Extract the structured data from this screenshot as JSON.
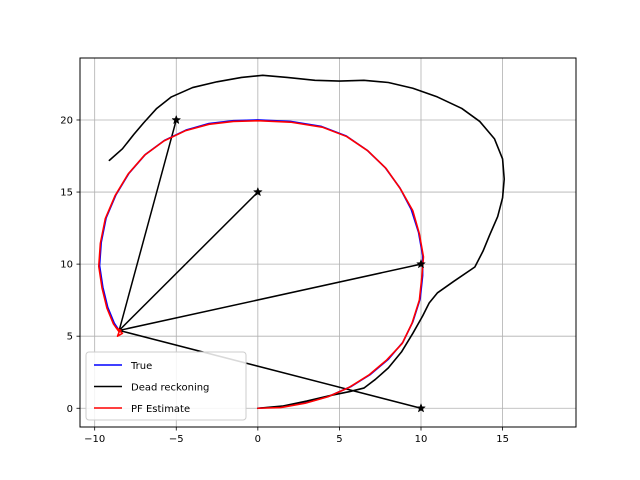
{
  "chart_data": {
    "type": "line",
    "title": "",
    "xlabel": "",
    "ylabel": "",
    "xlim": [
      -10.9,
      19.5
    ],
    "ylim": [
      -1.3,
      24.3
    ],
    "xticks": [
      -10,
      -5,
      0,
      5,
      10,
      15
    ],
    "yticks": [
      0,
      5,
      10,
      15,
      20
    ],
    "grid": true,
    "legend_position": "lower-left",
    "legend": [
      "True",
      "Dead reckoning",
      "PF Estimate"
    ],
    "series": [
      {
        "name": "True",
        "color": "#0000ff",
        "points": [
          [
            0,
            0
          ],
          [
            1.5,
            0.1
          ],
          [
            3.0,
            0.4
          ],
          [
            4.4,
            0.85
          ],
          [
            5.7,
            1.5
          ],
          [
            6.9,
            2.35
          ],
          [
            8.0,
            3.4
          ],
          [
            8.9,
            4.6
          ],
          [
            9.5,
            6.0
          ],
          [
            9.95,
            7.6
          ],
          [
            10.1,
            9.2
          ],
          [
            10.1,
            10.6
          ],
          [
            9.85,
            12.2
          ],
          [
            9.4,
            13.8
          ],
          [
            8.7,
            15.3
          ],
          [
            7.8,
            16.7
          ],
          [
            6.7,
            17.9
          ],
          [
            5.4,
            18.9
          ],
          [
            3.9,
            19.55
          ],
          [
            2.0,
            19.9
          ],
          [
            0,
            20.0
          ],
          [
            -1.5,
            19.95
          ],
          [
            -3.0,
            19.75
          ],
          [
            -4.4,
            19.3
          ],
          [
            -5.7,
            18.6
          ],
          [
            -6.9,
            17.6
          ],
          [
            -7.9,
            16.3
          ],
          [
            -8.7,
            14.8
          ],
          [
            -9.3,
            13.2
          ],
          [
            -9.6,
            11.5
          ],
          [
            -9.7,
            9.9
          ],
          [
            -9.5,
            8.4
          ],
          [
            -9.2,
            7.0
          ],
          [
            -8.8,
            5.9
          ],
          [
            -8.5,
            5.4
          ]
        ]
      },
      {
        "name": "Dead reckoning",
        "color": "#000000",
        "points": [
          [
            0,
            0
          ],
          [
            1.5,
            0.15
          ],
          [
            3.0,
            0.5
          ],
          [
            4.5,
            0.9
          ],
          [
            5.6,
            1.15
          ],
          [
            6.5,
            1.4
          ],
          [
            7.2,
            2.0
          ],
          [
            8.0,
            2.8
          ],
          [
            8.8,
            3.9
          ],
          [
            9.5,
            5.2
          ],
          [
            10.1,
            6.4
          ],
          [
            10.5,
            7.3
          ],
          [
            11.0,
            8.0
          ],
          [
            12.0,
            8.8
          ],
          [
            13.3,
            9.8
          ],
          [
            13.8,
            10.9
          ],
          [
            14.2,
            12.0
          ],
          [
            14.7,
            13.3
          ],
          [
            15.0,
            14.6
          ],
          [
            15.1,
            15.9
          ],
          [
            15.0,
            17.3
          ],
          [
            14.5,
            18.7
          ],
          [
            13.6,
            19.9
          ],
          [
            12.5,
            20.8
          ],
          [
            11.0,
            21.6
          ],
          [
            9.5,
            22.2
          ],
          [
            8.0,
            22.6
          ],
          [
            6.5,
            22.75
          ],
          [
            5.0,
            22.7
          ],
          [
            3.5,
            22.75
          ],
          [
            1.8,
            22.95
          ],
          [
            0.3,
            23.1
          ],
          [
            -1.0,
            22.95
          ],
          [
            -2.5,
            22.65
          ],
          [
            -4.0,
            22.25
          ],
          [
            -5.3,
            21.6
          ],
          [
            -6.2,
            20.8
          ],
          [
            -7.0,
            19.8
          ],
          [
            -7.6,
            19.0
          ],
          [
            -8.3,
            18.0
          ],
          [
            -9.1,
            17.2
          ]
        ]
      },
      {
        "name": "PF Estimate",
        "color": "#ff0000",
        "points": [
          [
            0,
            0
          ],
          [
            1.4,
            0.05
          ],
          [
            2.9,
            0.35
          ],
          [
            4.3,
            0.8
          ],
          [
            5.6,
            1.45
          ],
          [
            6.8,
            2.3
          ],
          [
            7.9,
            3.35
          ],
          [
            8.85,
            4.5
          ],
          [
            9.45,
            5.9
          ],
          [
            9.9,
            7.5
          ],
          [
            10.05,
            9.1
          ],
          [
            10.15,
            10.5
          ],
          [
            9.9,
            12.1
          ],
          [
            9.5,
            13.7
          ],
          [
            8.75,
            15.2
          ],
          [
            7.85,
            16.65
          ],
          [
            6.75,
            17.85
          ],
          [
            5.45,
            18.85
          ],
          [
            3.95,
            19.5
          ],
          [
            2.0,
            19.85
          ],
          [
            0,
            19.95
          ],
          [
            -1.5,
            19.9
          ],
          [
            -3.0,
            19.7
          ],
          [
            -4.45,
            19.25
          ],
          [
            -5.75,
            18.55
          ],
          [
            -6.95,
            17.55
          ],
          [
            -7.95,
            16.25
          ],
          [
            -8.75,
            14.75
          ],
          [
            -9.35,
            13.15
          ],
          [
            -9.65,
            11.45
          ],
          [
            -9.75,
            9.85
          ],
          [
            -9.55,
            8.35
          ],
          [
            -9.25,
            6.95
          ],
          [
            -8.85,
            5.85
          ],
          [
            -8.5,
            5.3
          ],
          [
            -8.6,
            5.0
          ],
          [
            -8.3,
            5.2
          ],
          [
            -8.7,
            5.6
          ],
          [
            -8.4,
            5.4
          ]
        ]
      }
    ],
    "landmarks": [
      [
        10,
        0
      ],
      [
        10,
        10
      ],
      [
        0,
        15
      ],
      [
        -5,
        20
      ]
    ],
    "observation_origin": [
      -8.5,
      5.4
    ],
    "colors": {
      "grid": "#b0b0b0",
      "axes": "#000000",
      "legend_border": "#cccccc"
    }
  }
}
